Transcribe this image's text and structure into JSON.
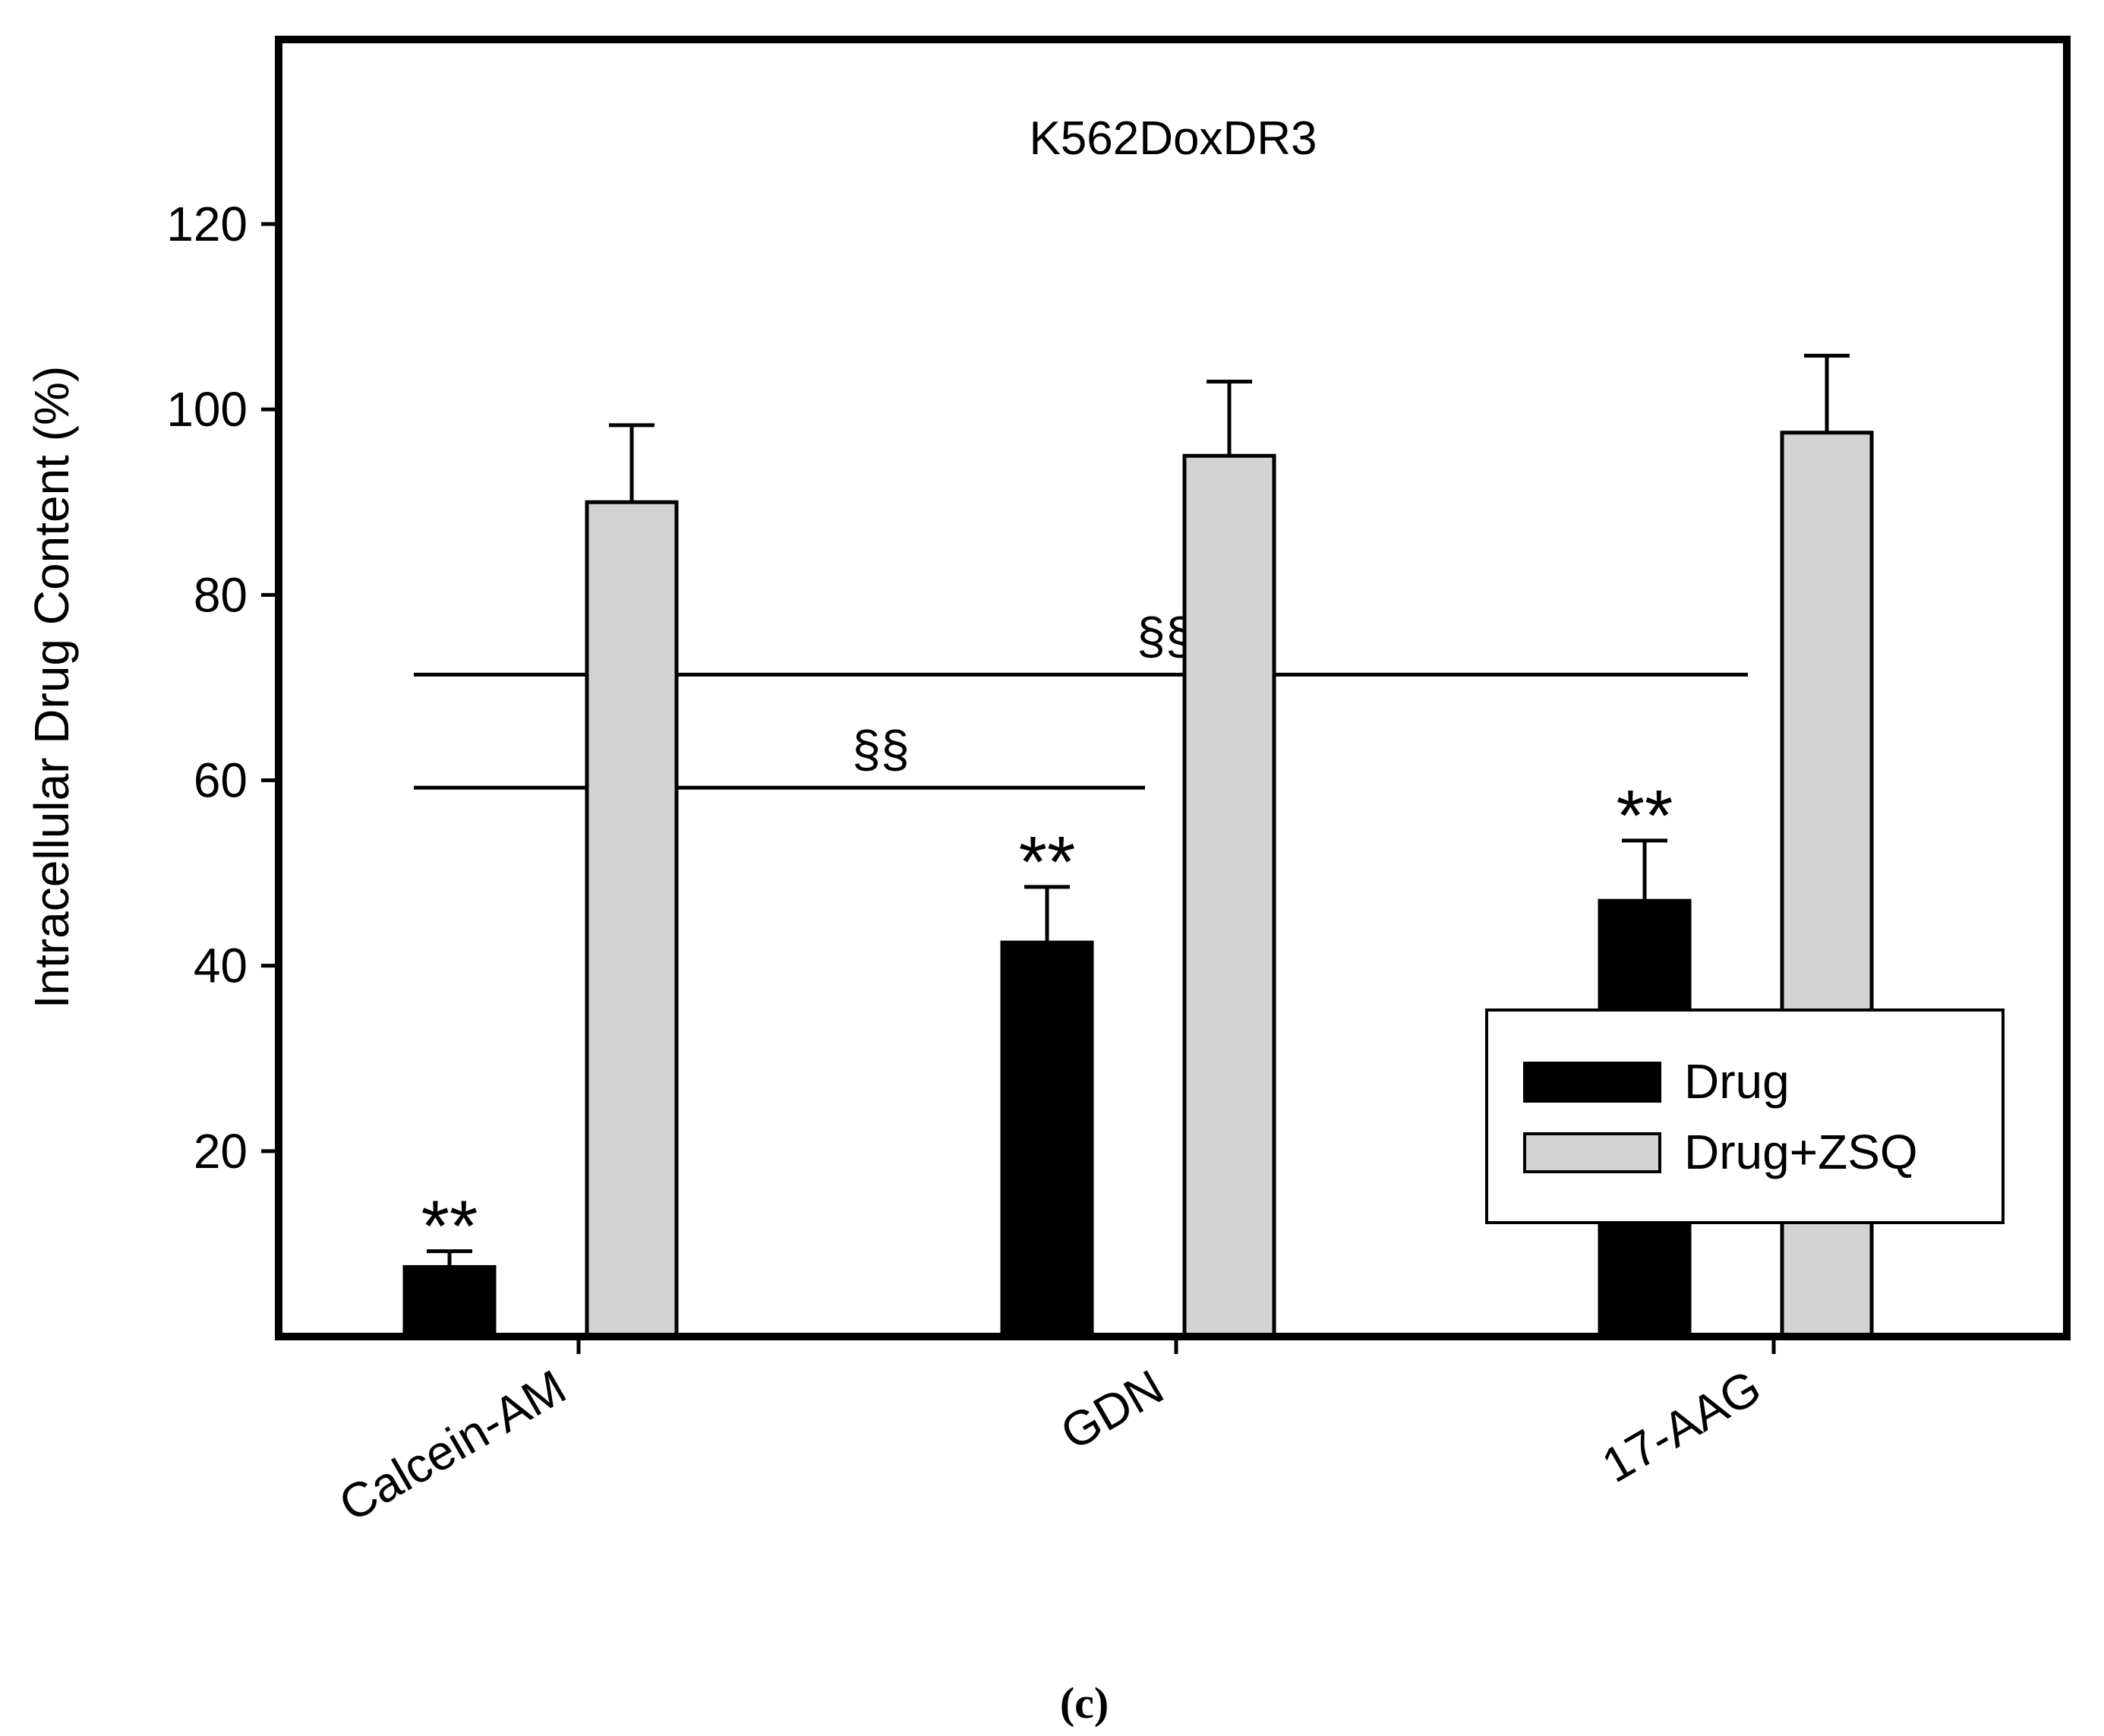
{
  "chart_data": {
    "type": "bar",
    "title": "K562DoxDR3",
    "xlabel": "",
    "ylabel": "Intracellular Drug Content (%)",
    "ylim": [
      0,
      140
    ],
    "yticks": [
      20,
      40,
      60,
      80,
      100,
      120
    ],
    "grid": false,
    "categories": [
      "Calcein-AM",
      "GDN",
      "17-AAG"
    ],
    "series": [
      {
        "name": "Drug",
        "color": "#000000",
        "values": [
          7.5,
          42.5,
          47
        ],
        "errors": [
          1.7,
          6,
          6.5
        ]
      },
      {
        "name": "Drug+ZSQ",
        "color": "#d3d3d3",
        "values": [
          90,
          95,
          97.5
        ],
        "errors": [
          8.3,
          8,
          8.3
        ]
      }
    ],
    "annotations": [
      {
        "text": "**",
        "category": "Calcein-AM",
        "series": "Drug"
      },
      {
        "text": "**",
        "category": "GDN",
        "series": "Drug"
      },
      {
        "text": "**",
        "category": "17-AAG",
        "series": "Drug"
      }
    ],
    "brackets": [
      {
        "text": "§§",
        "y": 59.2,
        "from": "Calcein-AM",
        "to": "GDN"
      },
      {
        "text": "§§",
        "y": 71.4,
        "from": "Calcein-AM",
        "to": "17-AAG"
      }
    ],
    "legend": {
      "placement": "lower-right",
      "entries": [
        "Drug",
        "Drug+ZSQ"
      ]
    }
  },
  "caption": "(c)"
}
